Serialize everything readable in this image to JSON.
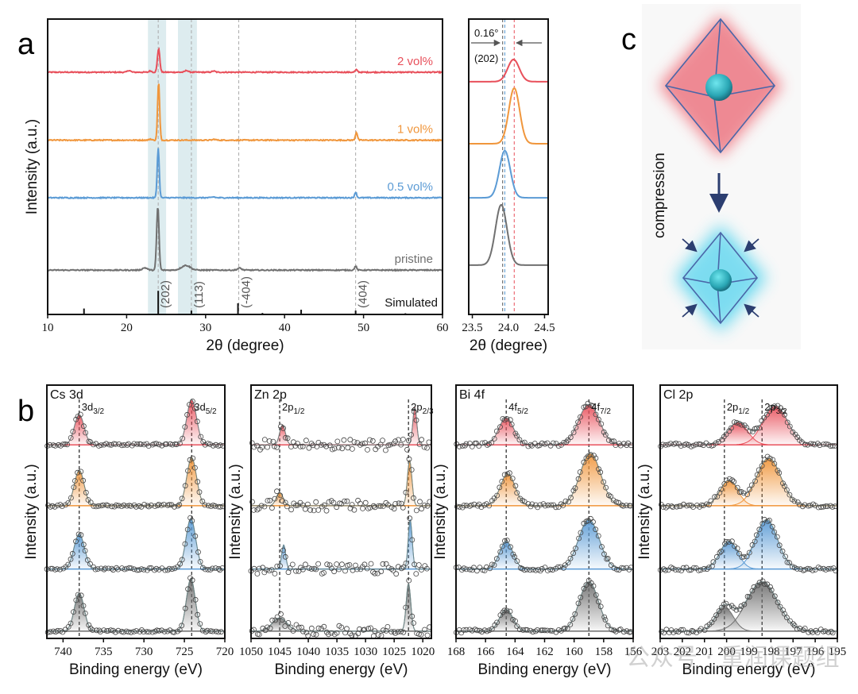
{
  "figure": {
    "panel_labels": {
      "a": "a",
      "b": "b",
      "c": "c"
    },
    "colors": {
      "red": "#e8505b",
      "orange": "#f0963c",
      "blue": "#5b9bd5",
      "gray": "#707070",
      "highlight": "#cfe4e8",
      "navy": "#2c3e70"
    },
    "watermark": "公众号 · 重润课题组"
  },
  "chart_data": [
    {
      "id": "a-main",
      "type": "line",
      "xlabel": "2θ (degree)",
      "ylabel": "Intensity (a.u.)",
      "xlim": [
        10,
        60
      ],
      "ylim": [
        0,
        100
      ],
      "xticks": [
        10,
        20,
        30,
        40,
        50,
        60
      ],
      "xtick_labels": [
        "10",
        "20",
        "30",
        "40",
        "50",
        "60"
      ],
      "highlight_bands": [
        [
          22.7,
          25.0
        ],
        [
          26.5,
          28.9
        ]
      ],
      "reference_lines": [
        24.0,
        28.2,
        34.2,
        49.0
      ],
      "reflections": [
        {
          "label": "(202)",
          "x": 24.0
        },
        {
          "label": "(113)",
          "x": 28.2
        },
        {
          "label": "(-404)",
          "x": 34.2
        },
        {
          "label": "(404)",
          "x": 49.0
        }
      ],
      "series": [
        {
          "name": "2 vol%",
          "color": "#e8505b",
          "offset": 82,
          "peaks": [
            [
              24.05,
              8,
              0.15
            ],
            [
              20.3,
              0.6,
              0.2
            ],
            [
              23.0,
              0.5,
              0.15
            ],
            [
              27.6,
              0.6,
              0.2
            ],
            [
              31.0,
              0.4,
              0.2
            ],
            [
              49.1,
              0.8,
              0.15
            ]
          ]
        },
        {
          "name": "1 vol%",
          "color": "#f0963c",
          "offset": 59,
          "peaks": [
            [
              24.05,
              19.6,
              0.13
            ],
            [
              23.0,
              0.4,
              0.15
            ],
            [
              31.1,
              0.3,
              0.2
            ],
            [
              49.1,
              2.7,
              0.13
            ]
          ]
        },
        {
          "name": "0.5 vol%",
          "color": "#5b9bd5",
          "offset": 39.5,
          "peaks": [
            [
              24.0,
              16.7,
              0.13
            ],
            [
              31.0,
              0.3,
              0.2
            ],
            [
              49.0,
              1.9,
              0.13
            ]
          ]
        },
        {
          "name": "pristine",
          "color": "#707070",
          "offset": 15,
          "peaks": [
            [
              23.95,
              21.5,
              0.15
            ],
            [
              22.3,
              0.8,
              0.3
            ],
            [
              27.5,
              1.6,
              0.55
            ],
            [
              34.3,
              0.7,
              0.25
            ],
            [
              49.0,
              1.4,
              0.13
            ]
          ]
        }
      ],
      "simulated": {
        "name": "Simulated",
        "color": "#111111",
        "sticks": [
          [
            14.6,
            2.0
          ],
          [
            24.0,
            8.0
          ],
          [
            28.2,
            1.3
          ],
          [
            34.1,
            3.8
          ],
          [
            37.2,
            0.5
          ],
          [
            42.1,
            1.6
          ],
          [
            49.0,
            1.3
          ],
          [
            55.3,
            0.4
          ]
        ]
      }
    },
    {
      "id": "a-inset",
      "type": "line",
      "xlabel": "2θ (degree)",
      "xlim": [
        23.45,
        24.55
      ],
      "ylim": [
        0,
        100
      ],
      "xticks": [
        23.5,
        24.0,
        24.5
      ],
      "xtick_labels": [
        "23.5",
        "24.0",
        "24.5"
      ],
      "shift_label": "0.16°",
      "reflection_label": "(202)",
      "reference_lines": [
        {
          "x": 23.92,
          "color": "#555555"
        },
        {
          "x": 23.95,
          "color": "#5b9bd5"
        },
        {
          "x": 24.08,
          "color": "#e8505b"
        }
      ],
      "series": [
        {
          "color": "#e8505b",
          "offset": 78.8,
          "peaks": [
            [
              24.07,
              7.5,
              0.08
            ]
          ]
        },
        {
          "color": "#f0963c",
          "offset": 57.8,
          "peaks": [
            [
              24.08,
              18.8,
              0.075
            ]
          ]
        },
        {
          "color": "#5b9bd5",
          "offset": 39.5,
          "peaks": [
            [
              23.95,
              15.9,
              0.075
            ]
          ]
        },
        {
          "color": "#707070",
          "offset": 16.7,
          "peaks": [
            [
              23.9,
              20.4,
              0.08
            ]
          ]
        }
      ]
    },
    {
      "id": "cs3d",
      "type": "scatter",
      "title": "Cs 3d",
      "xlabel": "Binding energy (eV)",
      "ylabel": "Intensity (a.u.)",
      "xlim": [
        742,
        720
      ],
      "ylim": [
        0,
        4.2
      ],
      "xticks": [
        740,
        735,
        730,
        725,
        720
      ],
      "xtick_labels": [
        "740",
        "735",
        "730",
        "725",
        "720"
      ],
      "reference_lines": [
        738.0,
        724.1
      ],
      "peak_labels": [
        {
          "main": "3d",
          "sub": "3/2",
          "x": 738.0
        },
        {
          "main": "3d",
          "sub": "5/2",
          "x": 724.1
        }
      ],
      "noise": 0.02,
      "series": [
        {
          "color": "#e8505b",
          "offset": 3.21,
          "peaks": [
            [
              738.0,
              0.5,
              0.6
            ],
            [
              724.1,
              0.75,
              0.6
            ]
          ]
        },
        {
          "color": "#f0963c",
          "offset": 2.2,
          "peaks": [
            [
              738.0,
              0.59,
              0.6
            ],
            [
              724.1,
              0.8,
              0.6
            ]
          ]
        },
        {
          "color": "#5b9bd5",
          "offset": 1.15,
          "peaks": [
            [
              738.0,
              0.58,
              0.65
            ],
            [
              724.2,
              0.84,
              0.6
            ]
          ]
        },
        {
          "color": "#707070",
          "offset": 0.12,
          "peaks": [
            [
              738.0,
              0.63,
              0.6
            ],
            [
              724.2,
              0.87,
              0.55
            ]
          ]
        }
      ]
    },
    {
      "id": "zn2p",
      "type": "scatter",
      "title": "Zn 2p",
      "xlabel": "Binding energy (eV)",
      "ylabel": "Intensity (a.u.)",
      "xlim": [
        1050,
        1018.5
      ],
      "ylim": [
        0,
        4.2
      ],
      "xticks": [
        1050,
        1045,
        1040,
        1035,
        1030,
        1025,
        1020
      ],
      "xtick_labels": [
        "1050",
        "1045",
        "1040",
        "1035",
        "1030",
        "1025",
        "1020"
      ],
      "reference_lines": [
        1045.0,
        1022.5
      ],
      "peak_labels": [
        {
          "main": "2p",
          "sub": "1/2",
          "x": 1045.0
        },
        {
          "main": "2p",
          "sub": "2/3",
          "x": 1022.5
        }
      ],
      "noise": 0.09,
      "series": [
        {
          "color": "#e8505b",
          "offset": 3.21,
          "peaks": [
            [
              1044.5,
              0.33,
              0.5
            ],
            [
              1021.4,
              0.62,
              0.35
            ]
          ]
        },
        {
          "color": "#f0963c",
          "offset": 2.2,
          "peaks": [
            [
              1045.0,
              0.22,
              0.6
            ],
            [
              1022.3,
              0.75,
              0.4
            ]
          ]
        },
        {
          "color": "#5b9bd5",
          "offset": 1.15,
          "peaks": [
            [
              1044.3,
              0.4,
              0.35
            ],
            [
              1022.2,
              0.82,
              0.35
            ]
          ]
        },
        {
          "color": "#707070",
          "offset": 0.12,
          "peaks": [
            [
              1045.0,
              0.22,
              1.3
            ],
            [
              1022.5,
              0.79,
              0.4
            ]
          ]
        }
      ]
    },
    {
      "id": "bi4f",
      "type": "scatter",
      "title": "Bi 4f",
      "xlabel": "Binding energy (eV)",
      "ylabel": "Intensity (a.u.)",
      "xlim": [
        168,
        156
      ],
      "ylim": [
        0,
        4.2
      ],
      "xticks": [
        168,
        166,
        164,
        162,
        160,
        158,
        156
      ],
      "xtick_labels": [
        "168",
        "166",
        "164",
        "162",
        "160",
        "158",
        "156"
      ],
      "reference_lines": [
        164.6,
        159.0
      ],
      "peak_labels": [
        {
          "main": "4f",
          "sub": "5/2",
          "x": 164.6
        },
        {
          "main": "4f",
          "sub": "7/2",
          "x": 159.0
        }
      ],
      "noise": 0.03,
      "series": [
        {
          "color": "#e8505b",
          "offset": 3.21,
          "peaks": [
            [
              164.6,
              0.45,
              0.5
            ],
            [
              159.0,
              0.67,
              0.7
            ]
          ]
        },
        {
          "color": "#f0963c",
          "offset": 2.2,
          "peaks": [
            [
              164.5,
              0.53,
              0.5
            ],
            [
              158.9,
              0.87,
              0.7
            ]
          ]
        },
        {
          "color": "#5b9bd5",
          "offset": 1.15,
          "peaks": [
            [
              164.6,
              0.46,
              0.45
            ],
            [
              159.0,
              0.82,
              0.7
            ]
          ]
        },
        {
          "color": "#707070",
          "offset": 0.12,
          "peaks": [
            [
              164.6,
              0.36,
              0.45
            ],
            [
              159.0,
              0.82,
              0.65
            ]
          ]
        }
      ]
    },
    {
      "id": "cl2p",
      "type": "scatter",
      "title": "Cl 2p",
      "xlabel": "Binding energy (eV)",
      "ylabel": "Intensity (a.u.)",
      "xlim": [
        203,
        195
      ],
      "ylim": [
        0,
        4.2
      ],
      "xticks": [
        203,
        202,
        201,
        200,
        199,
        198,
        197,
        196,
        195
      ],
      "xtick_labels": [
        "203",
        "202",
        "201",
        "200",
        "199",
        "198",
        "197",
        "196",
        "195"
      ],
      "reference_lines": [
        200.1,
        198.4
      ],
      "peak_labels": [
        {
          "main": "2p",
          "sub": "1/2",
          "x": 200.1
        },
        {
          "main": "2p",
          "sub": "3/2",
          "x": 198.4
        }
      ],
      "noise": 0.03,
      "series": [
        {
          "color": "#e8505b",
          "offset": 3.21,
          "peaks": [
            [
              199.5,
              0.37,
              0.45
            ],
            [
              197.8,
              0.65,
              0.55
            ]
          ]
        },
        {
          "color": "#f0963c",
          "offset": 2.2,
          "peaks": [
            [
              199.9,
              0.42,
              0.4
            ],
            [
              198.1,
              0.79,
              0.55
            ]
          ]
        },
        {
          "color": "#5b9bd5",
          "offset": 1.15,
          "peaks": [
            [
              199.9,
              0.46,
              0.4
            ],
            [
              198.2,
              0.82,
              0.5
            ]
          ]
        },
        {
          "color": "#707070",
          "offset": 0.12,
          "peaks": [
            [
              200.1,
              0.4,
              0.4
            ],
            [
              198.4,
              0.82,
              0.7
            ]
          ]
        }
      ]
    }
  ],
  "panel_c": {
    "label": "compression"
  }
}
